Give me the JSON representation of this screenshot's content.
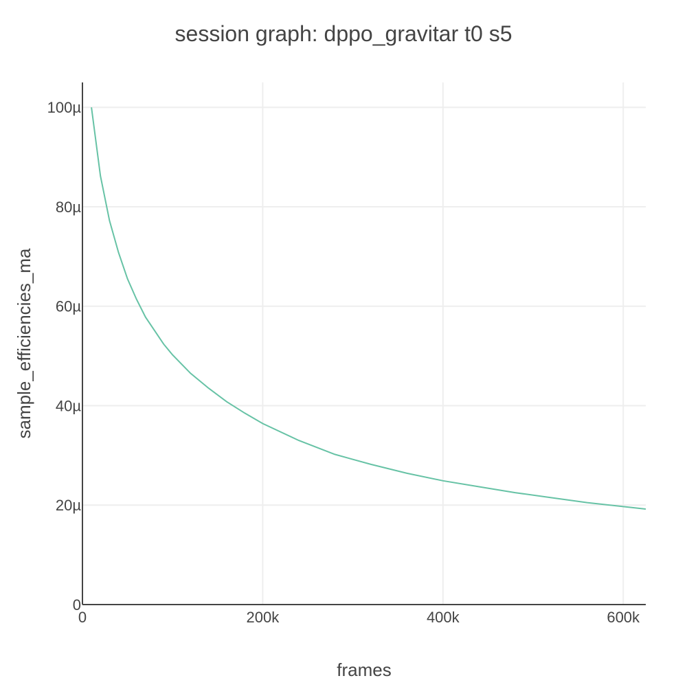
{
  "chart_data": {
    "type": "line",
    "title": "session graph: dppo_gravitar t0 s5",
    "xlabel": "frames",
    "ylabel": "sample_efficiencies_ma",
    "xlim": [
      0,
      625000
    ],
    "ylim": [
      0,
      0.000105
    ],
    "x_ticks": [
      {
        "value": 0,
        "label": "0"
      },
      {
        "value": 200000,
        "label": "200k"
      },
      {
        "value": 400000,
        "label": "400k"
      },
      {
        "value": 600000,
        "label": "600k"
      }
    ],
    "y_ticks": [
      {
        "value": 0,
        "label": "0"
      },
      {
        "value": 2e-05,
        "label": "20µ"
      },
      {
        "value": 4e-05,
        "label": "40µ"
      },
      {
        "value": 6e-05,
        "label": "60µ"
      },
      {
        "value": 8e-05,
        "label": "80µ"
      },
      {
        "value": 0.0001,
        "label": "100µ"
      }
    ],
    "grid": true,
    "series": [
      {
        "color": "#66c2a5",
        "x": [
          10000,
          20000,
          30000,
          40000,
          50000,
          60000,
          70000,
          80000,
          90000,
          100000,
          120000,
          140000,
          160000,
          180000,
          200000,
          240000,
          280000,
          320000,
          360000,
          400000,
          440000,
          480000,
          520000,
          560000,
          600000,
          625000
        ],
        "y": [
          0.0001,
          8.62e-05,
          7.72e-05,
          7.08e-05,
          6.55e-05,
          6.14e-05,
          5.78e-05,
          5.51e-05,
          5.24e-05,
          5.02e-05,
          4.65e-05,
          4.35e-05,
          4.08e-05,
          3.85e-05,
          3.64e-05,
          3.3e-05,
          3.02e-05,
          2.82e-05,
          2.64e-05,
          2.49e-05,
          2.37e-05,
          2.25e-05,
          2.15e-05,
          2.05e-05,
          1.97e-05,
          1.92e-05
        ]
      }
    ]
  }
}
